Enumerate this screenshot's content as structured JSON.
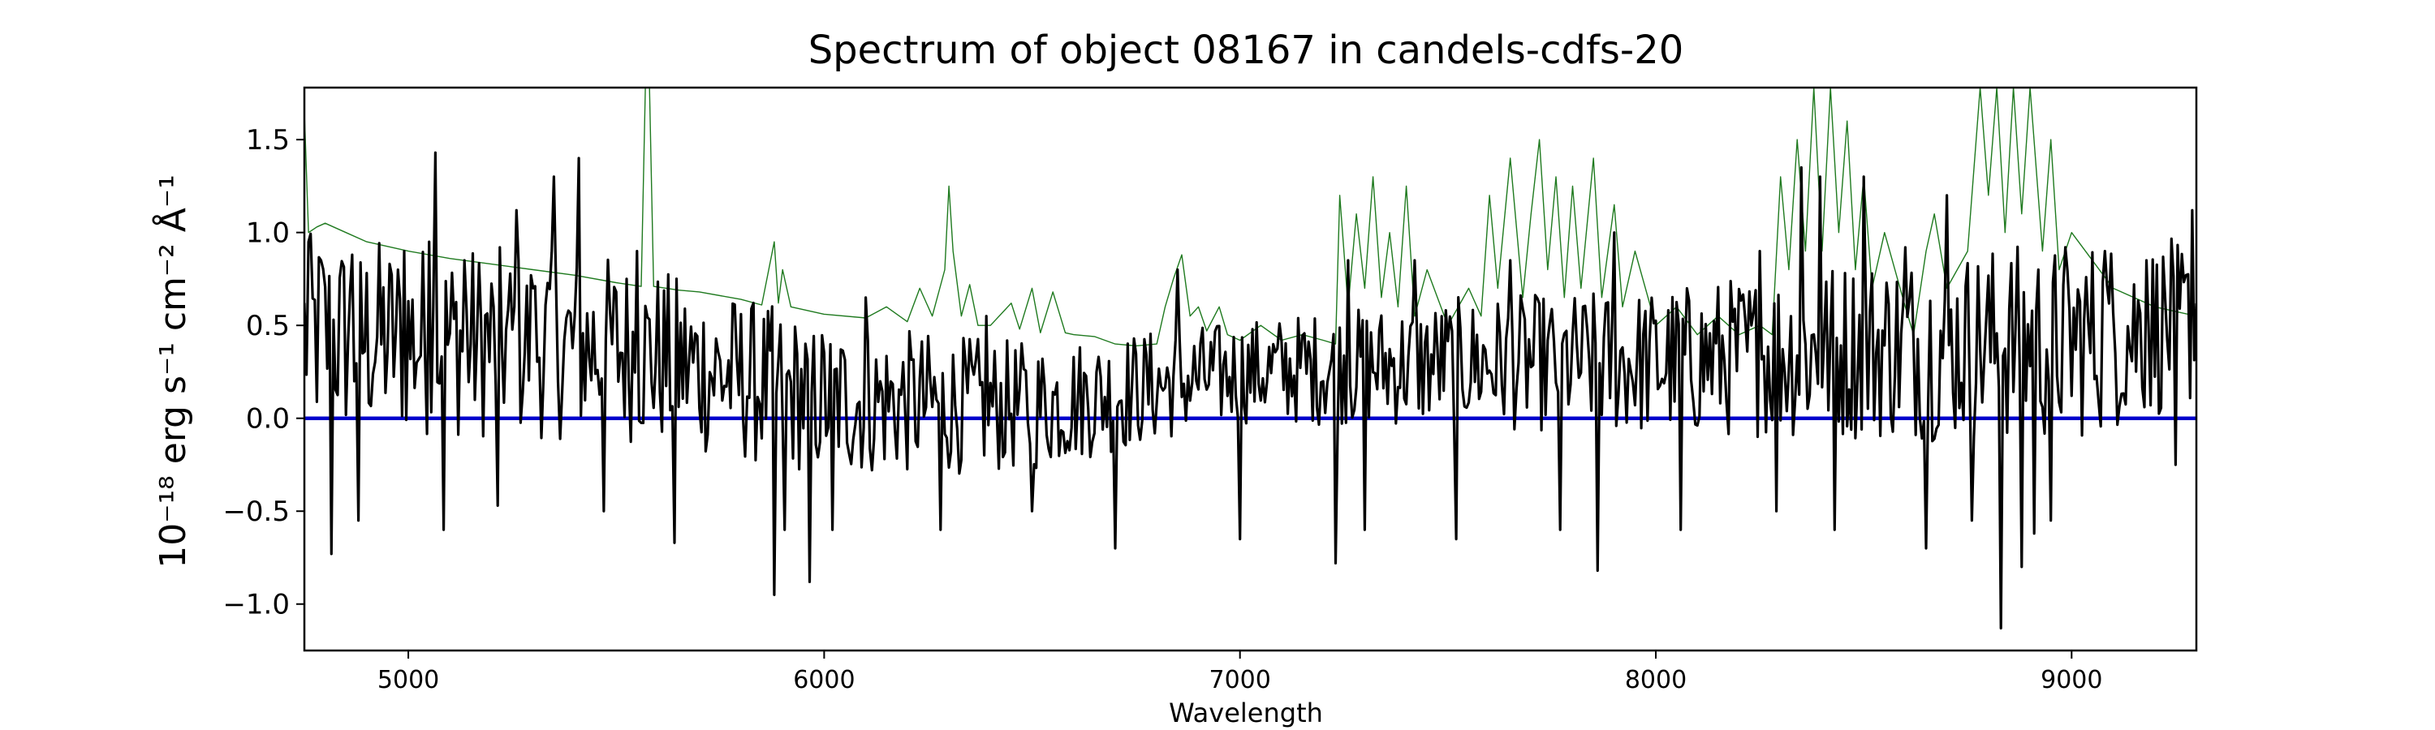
{
  "chart_data": {
    "type": "line",
    "title": "Spectrum of object 08167 in candels-cdfs-20",
    "xlabel": "Wavelength",
    "ylabel": "10⁻¹⁸ erg s⁻¹ cm⁻² Å⁻¹",
    "xlim": [
      4750,
      9300
    ],
    "ylim": [
      -1.25,
      1.78
    ],
    "x_ticks": [
      5000,
      6000,
      7000,
      8000,
      9000
    ],
    "x_tick_labels": [
      "5000",
      "6000",
      "7000",
      "8000",
      "9000"
    ],
    "y_ticks": [
      -1.0,
      -0.5,
      0.0,
      0.5,
      1.0,
      1.5
    ],
    "y_tick_labels": [
      "−1.0",
      "−0.5",
      "0.0",
      "0.5",
      "1.0",
      "1.5"
    ],
    "grid": false,
    "series": [
      {
        "color": "#1f7a1f",
        "style": "thin",
        "points": [
          [
            4750,
            1.65
          ],
          [
            4760,
            1.0
          ],
          [
            4780,
            1.03
          ],
          [
            4800,
            1.05
          ],
          [
            4850,
            1.0
          ],
          [
            4900,
            0.95
          ],
          [
            5000,
            0.9
          ],
          [
            5100,
            0.86
          ],
          [
            5200,
            0.83
          ],
          [
            5300,
            0.8
          ],
          [
            5400,
            0.77
          ],
          [
            5500,
            0.73
          ],
          [
            5560,
            0.71
          ],
          [
            5570,
            1.78
          ],
          [
            5580,
            1.78
          ],
          [
            5590,
            0.71
          ],
          [
            5650,
            0.69
          ],
          [
            5700,
            0.68
          ],
          [
            5800,
            0.64
          ],
          [
            5850,
            0.61
          ],
          [
            5880,
            0.95
          ],
          [
            5890,
            0.62
          ],
          [
            5900,
            0.8
          ],
          [
            5920,
            0.6
          ],
          [
            6000,
            0.56
          ],
          [
            6100,
            0.54
          ],
          [
            6150,
            0.6
          ],
          [
            6200,
            0.52
          ],
          [
            6230,
            0.7
          ],
          [
            6260,
            0.55
          ],
          [
            6290,
            0.8
          ],
          [
            6300,
            1.25
          ],
          [
            6310,
            0.9
          ],
          [
            6330,
            0.55
          ],
          [
            6350,
            0.72
          ],
          [
            6370,
            0.5
          ],
          [
            6400,
            0.5
          ],
          [
            6450,
            0.62
          ],
          [
            6470,
            0.48
          ],
          [
            6500,
            0.7
          ],
          [
            6520,
            0.46
          ],
          [
            6550,
            0.68
          ],
          [
            6580,
            0.46
          ],
          [
            6600,
            0.45
          ],
          [
            6650,
            0.44
          ],
          [
            6700,
            0.4
          ],
          [
            6750,
            0.39
          ],
          [
            6800,
            0.4
          ],
          [
            6820,
            0.6
          ],
          [
            6840,
            0.75
          ],
          [
            6860,
            0.88
          ],
          [
            6880,
            0.55
          ],
          [
            6900,
            0.6
          ],
          [
            6920,
            0.47
          ],
          [
            6950,
            0.6
          ],
          [
            6970,
            0.45
          ],
          [
            7000,
            0.42
          ],
          [
            7050,
            0.5
          ],
          [
            7100,
            0.42
          ],
          [
            7150,
            0.45
          ],
          [
            7200,
            0.42
          ],
          [
            7230,
            0.4
          ],
          [
            7240,
            1.2
          ],
          [
            7260,
            0.6
          ],
          [
            7280,
            1.1
          ],
          [
            7300,
            0.7
          ],
          [
            7320,
            1.3
          ],
          [
            7340,
            0.65
          ],
          [
            7360,
            1.0
          ],
          [
            7380,
            0.6
          ],
          [
            7400,
            1.25
          ],
          [
            7420,
            0.55
          ],
          [
            7450,
            0.8
          ],
          [
            7500,
            0.5
          ],
          [
            7550,
            0.7
          ],
          [
            7580,
            0.55
          ],
          [
            7600,
            1.2
          ],
          [
            7620,
            0.7
          ],
          [
            7650,
            1.4
          ],
          [
            7680,
            0.65
          ],
          [
            7700,
            1.1
          ],
          [
            7720,
            1.5
          ],
          [
            7740,
            0.8
          ],
          [
            7760,
            1.3
          ],
          [
            7780,
            0.65
          ],
          [
            7800,
            1.25
          ],
          [
            7820,
            0.7
          ],
          [
            7850,
            1.4
          ],
          [
            7870,
            0.65
          ],
          [
            7900,
            1.15
          ],
          [
            7920,
            0.6
          ],
          [
            7950,
            0.9
          ],
          [
            8000,
            0.5
          ],
          [
            8050,
            0.6
          ],
          [
            8100,
            0.45
          ],
          [
            8150,
            0.55
          ],
          [
            8200,
            0.45
          ],
          [
            8250,
            0.5
          ],
          [
            8280,
            0.45
          ],
          [
            8300,
            1.3
          ],
          [
            8320,
            0.8
          ],
          [
            8340,
            1.5
          ],
          [
            8360,
            0.9
          ],
          [
            8380,
            1.78
          ],
          [
            8400,
            0.9
          ],
          [
            8420,
            1.78
          ],
          [
            8440,
            1.0
          ],
          [
            8460,
            1.6
          ],
          [
            8480,
            0.8
          ],
          [
            8500,
            1.3
          ],
          [
            8520,
            0.7
          ],
          [
            8550,
            1.0
          ],
          [
            8600,
            0.6
          ],
          [
            8620,
            0.45
          ],
          [
            8650,
            0.9
          ],
          [
            8670,
            1.1
          ],
          [
            8700,
            0.7
          ],
          [
            8750,
            0.9
          ],
          [
            8780,
            1.78
          ],
          [
            8800,
            1.2
          ],
          [
            8820,
            1.78
          ],
          [
            8840,
            1.0
          ],
          [
            8860,
            1.78
          ],
          [
            8880,
            1.1
          ],
          [
            8900,
            1.78
          ],
          [
            8930,
            0.9
          ],
          [
            8950,
            1.5
          ],
          [
            8970,
            0.8
          ],
          [
            9000,
            1.0
          ],
          [
            9100,
            0.7
          ],
          [
            9200,
            0.6
          ],
          [
            9300,
            0.55
          ]
        ]
      },
      {
        "color": "#0000cc",
        "style": "zero",
        "points": [
          [
            4750,
            0.0
          ],
          [
            9300,
            0.0
          ]
        ]
      },
      {
        "color": "#000000",
        "style": "noisy",
        "trend": [
          [
            4750,
            0.45
          ],
          [
            5500,
            0.38
          ],
          [
            6000,
            0.1
          ],
          [
            6500,
            0.06
          ],
          [
            7000,
            0.25
          ],
          [
            7500,
            0.3
          ],
          [
            8000,
            0.3
          ],
          [
            8500,
            0.38
          ],
          [
            9000,
            0.42
          ],
          [
            9300,
            0.52
          ]
        ],
        "noise": [
          [
            4750,
            0.55
          ],
          [
            5500,
            0.5
          ],
          [
            6000,
            0.42
          ],
          [
            6500,
            0.35
          ],
          [
            7000,
            0.28
          ],
          [
            7500,
            0.35
          ],
          [
            8000,
            0.4
          ],
          [
            8500,
            0.5
          ],
          [
            9000,
            0.55
          ],
          [
            9300,
            0.45
          ]
        ],
        "spikes": [
          [
            4760,
            0.95
          ],
          [
            4790,
            0.85
          ],
          [
            4815,
            -0.73
          ],
          [
            4865,
            0.88
          ],
          [
            4880,
            -0.55
          ],
          [
            4990,
            0.9
          ],
          [
            5050,
            0.95
          ],
          [
            5065,
            1.43
          ],
          [
            5085,
            -0.6
          ],
          [
            5135,
            0.85
          ],
          [
            5215,
            -0.47
          ],
          [
            5260,
            1.12
          ],
          [
            5300,
            0.7
          ],
          [
            5350,
            1.3
          ],
          [
            5410,
            1.4
          ],
          [
            5470,
            -0.5
          ],
          [
            5550,
            0.9
          ],
          [
            5640,
            -0.67
          ],
          [
            5880,
            -0.95
          ],
          [
            5905,
            -0.6
          ],
          [
            5965,
            -0.88
          ],
          [
            6020,
            -0.6
          ],
          [
            6100,
            0.65
          ],
          [
            6280,
            -0.6
          ],
          [
            6390,
            0.55
          ],
          [
            6500,
            -0.5
          ],
          [
            6700,
            -0.7
          ],
          [
            6850,
            0.8
          ],
          [
            7000,
            -0.65
          ],
          [
            7230,
            -0.78
          ],
          [
            7260,
            0.85
          ],
          [
            7300,
            -0.6
          ],
          [
            7420,
            0.85
          ],
          [
            7520,
            -0.65
          ],
          [
            7650,
            0.85
          ],
          [
            7770,
            -0.6
          ],
          [
            7860,
            -0.82
          ],
          [
            7900,
            1.0
          ],
          [
            8060,
            -0.6
          ],
          [
            8250,
            0.9
          ],
          [
            8290,
            -0.5
          ],
          [
            8350,
            1.35
          ],
          [
            8395,
            1.3
          ],
          [
            8430,
            -0.6
          ],
          [
            8500,
            1.3
          ],
          [
            8600,
            0.92
          ],
          [
            8650,
            -0.7
          ],
          [
            8700,
            1.2
          ],
          [
            8760,
            -0.55
          ],
          [
            8830,
            -1.13
          ],
          [
            8880,
            -0.8
          ],
          [
            8910,
            -0.62
          ],
          [
            8950,
            -0.55
          ],
          [
            9080,
            0.9
          ],
          [
            9180,
            0.85
          ],
          [
            9250,
            -0.25
          ],
          [
            9290,
            1.12
          ]
        ]
      }
    ]
  }
}
